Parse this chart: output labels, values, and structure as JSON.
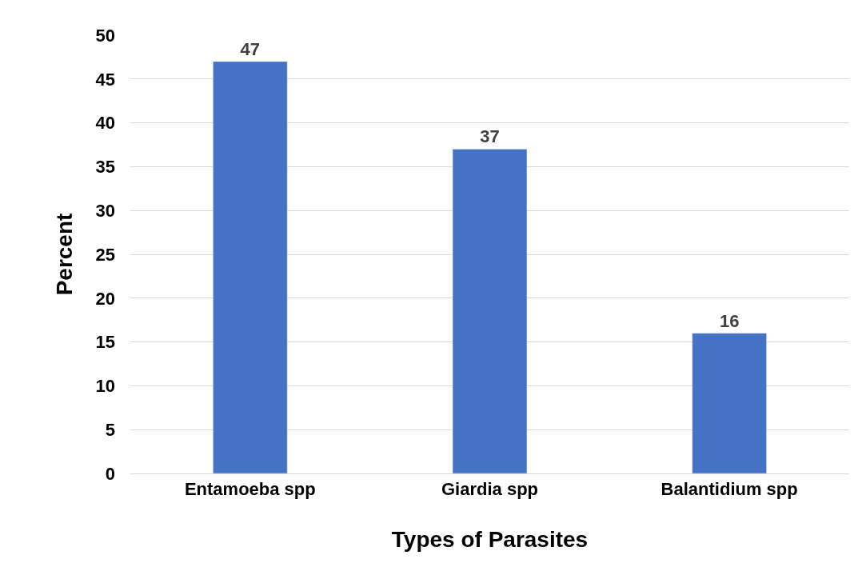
{
  "chart_data": {
    "type": "bar",
    "xlabel": "Types of Parasites",
    "ylabel": "Percent",
    "categories": [
      "Entamoeba spp",
      "Giardia spp",
      "Balantidium spp"
    ],
    "values": [
      47,
      37,
      16
    ],
    "color": "#4472c4",
    "ylim": [
      0,
      50
    ],
    "yticks": [
      0,
      5,
      10,
      15,
      20,
      25,
      30,
      35,
      40,
      45,
      50
    ],
    "grid": "y",
    "data_labels": true
  }
}
